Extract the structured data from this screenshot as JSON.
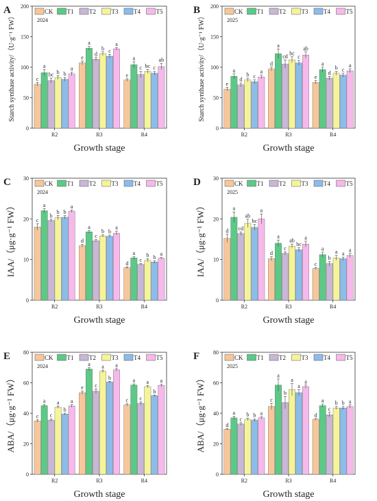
{
  "legend_labels": [
    "CK",
    "T1",
    "T2",
    "T3",
    "T4",
    "T5"
  ],
  "series_colors": [
    "#F7C79B",
    "#5DC987",
    "#C9B7D6",
    "#F6F49A",
    "#8DBBEA",
    "#F7B8EC"
  ],
  "chart_data": [
    {
      "type": "bar",
      "panel_label": "A",
      "year": "2024",
      "ylabel": "Starch synthase activity/（U·g⁻¹ FW）",
      "xlabel": "Growth stage",
      "categories": [
        "R2",
        "R3",
        "R4"
      ],
      "ylim": [
        0,
        200
      ],
      "yticks": [
        0,
        50,
        100,
        150,
        200
      ],
      "series": [
        {
          "name": "CK",
          "values": [
            72,
            107,
            79
          ],
          "errors": [
            3,
            3,
            2
          ],
          "letters": [
            "c",
            "e",
            "e"
          ]
        },
        {
          "name": "T1",
          "values": [
            91,
            131,
            104
          ],
          "errors": [
            5,
            3,
            5
          ],
          "letters": [
            "a",
            "a",
            "a"
          ]
        },
        {
          "name": "T2",
          "values": [
            78,
            113,
            88
          ],
          "errors": [
            4,
            3,
            5
          ],
          "letters": [
            "bc",
            "d",
            "c"
          ]
        },
        {
          "name": "T3",
          "values": [
            83,
            122,
            93
          ],
          "errors": [
            3,
            3,
            3
          ],
          "letters": [
            "b",
            "b",
            "bc"
          ]
        },
        {
          "name": "T4",
          "values": [
            80,
            118,
            90
          ],
          "errors": [
            3,
            3,
            3
          ],
          "letters": [
            "b",
            "c",
            "c"
          ]
        },
        {
          "name": "T5",
          "values": [
            89,
            130,
            101
          ],
          "errors": [
            3,
            2,
            5
          ],
          "letters": [
            "a",
            "a",
            "ab"
          ]
        }
      ]
    },
    {
      "type": "bar",
      "panel_label": "B",
      "year": "2025",
      "ylabel": "Starch synthase activity/（U·g⁻¹ FW）",
      "xlabel": "Growth stage",
      "categories": [
        "R2",
        "R3",
        "R4"
      ],
      "ylim": [
        0,
        200
      ],
      "yticks": [
        0,
        50,
        100,
        150,
        200
      ],
      "series": [
        {
          "name": "CK",
          "values": [
            64,
            97,
            75
          ],
          "errors": [
            3,
            3,
            3
          ],
          "letters": [
            "e",
            "d",
            "e"
          ]
        },
        {
          "name": "T1",
          "values": [
            85,
            122,
            96
          ],
          "errors": [
            4,
            8,
            4
          ],
          "letters": [
            "a",
            "a",
            "a"
          ]
        },
        {
          "name": "T2",
          "values": [
            71,
            105,
            82
          ],
          "errors": [
            3,
            7,
            3
          ],
          "letters": [
            "d",
            "cd",
            "d"
          ]
        },
        {
          "name": "T3",
          "values": [
            79,
            112,
            90
          ],
          "errors": [
            3,
            5,
            3
          ],
          "letters": [
            "b",
            "bc",
            "b"
          ]
        },
        {
          "name": "T4",
          "values": [
            76,
            107,
            87
          ],
          "errors": [
            3,
            4,
            3
          ],
          "letters": [
            "c",
            "c",
            "c"
          ]
        },
        {
          "name": "T5",
          "values": [
            84,
            120,
            94
          ],
          "errors": [
            3,
            5,
            3
          ],
          "letters": [
            "a",
            "ab",
            "a"
          ]
        }
      ]
    },
    {
      "type": "bar",
      "panel_label": "C",
      "year": "2024",
      "ylabel": "IAA/（μg·g⁻¹ FW）",
      "xlabel": "Growth stage",
      "categories": [
        "R2",
        "R3",
        "R4"
      ],
      "ylim": [
        0,
        30
      ],
      "yticks": [
        0,
        10,
        20,
        30
      ],
      "series": [
        {
          "name": "CK",
          "values": [
            18.0,
            13.4,
            8.0
          ],
          "errors": [
            0.8,
            0.3,
            0.2
          ],
          "letters": [
            "c",
            "d",
            "d"
          ]
        },
        {
          "name": "T1",
          "values": [
            22.0,
            16.8,
            10.4
          ],
          "errors": [
            0.5,
            0.3,
            0.3
          ],
          "letters": [
            "a",
            "a",
            "a"
          ]
        },
        {
          "name": "T2",
          "values": [
            19.6,
            14.6,
            8.8
          ],
          "errors": [
            0.3,
            0.3,
            0.2
          ],
          "letters": [
            "b",
            "c",
            "c"
          ]
        },
        {
          "name": "T3",
          "values": [
            20.3,
            15.8,
            9.8
          ],
          "errors": [
            0.5,
            0.3,
            0.4
          ],
          "letters": [
            "b",
            "b",
            "b"
          ]
        },
        {
          "name": "T4",
          "values": [
            20.4,
            15.7,
            9.4
          ],
          "errors": [
            0.4,
            0.3,
            0.3
          ],
          "letters": [
            "b",
            "b",
            "b"
          ]
        },
        {
          "name": "T5",
          "values": [
            21.9,
            16.5,
            10.3
          ],
          "errors": [
            0.3,
            0.5,
            0.2
          ],
          "letters": [
            "a",
            "a",
            "a"
          ]
        }
      ]
    },
    {
      "type": "bar",
      "panel_label": "D",
      "year": "2025",
      "ylabel": "IAA/（μg·g⁻¹ FW）",
      "xlabel": "Growth stage",
      "categories": [
        "R2",
        "R3",
        "R4"
      ],
      "ylim": [
        0,
        30
      ],
      "yticks": [
        0,
        10,
        20,
        30
      ],
      "series": [
        {
          "name": "CK",
          "values": [
            15.2,
            10.2,
            7.8
          ],
          "errors": [
            1.0,
            0.5,
            0.2
          ],
          "letters": [
            "d",
            "d",
            "c"
          ]
        },
        {
          "name": "T1",
          "values": [
            20.4,
            14.0,
            11.2
          ],
          "errors": [
            1.3,
            0.8,
            0.6
          ],
          "letters": [
            "a",
            "a",
            "a"
          ]
        },
        {
          "name": "T2",
          "values": [
            16.4,
            11.5,
            9.0
          ],
          "errors": [
            0.4,
            0.4,
            0.5
          ],
          "letters": [
            "cd",
            "c",
            "b"
          ]
        },
        {
          "name": "T3",
          "values": [
            18.9,
            13.3,
            10.4
          ],
          "errors": [
            1.0,
            0.5,
            0.6
          ],
          "letters": [
            "ab",
            "ab",
            "a"
          ]
        },
        {
          "name": "T4",
          "values": [
            17.9,
            12.4,
            10.2
          ],
          "errors": [
            0.7,
            0.5,
            0.4
          ],
          "letters": [
            "bc",
            "bc",
            "a"
          ]
        },
        {
          "name": "T5",
          "values": [
            20.0,
            13.8,
            11.0
          ],
          "errors": [
            1.2,
            0.7,
            0.5
          ],
          "letters": [
            "a",
            "a",
            "a"
          ]
        }
      ]
    },
    {
      "type": "bar",
      "panel_label": "E",
      "year": "2024",
      "ylabel": "ABA/（μg·g⁻¹ FW）",
      "xlabel": "Growth stage",
      "categories": [
        "R2",
        "R3",
        "R4"
      ],
      "ylim": [
        0,
        80
      ],
      "yticks": [
        0,
        20,
        40,
        60,
        80
      ],
      "series": [
        {
          "name": "CK",
          "values": [
            35,
            53.5,
            45.5
          ],
          "errors": [
            0.8,
            1.0,
            0.8
          ],
          "letters": [
            "c",
            "e",
            "c"
          ]
        },
        {
          "name": "T1",
          "values": [
            45,
            69,
            58.5
          ],
          "errors": [
            0.8,
            1.0,
            0.8
          ],
          "letters": [
            "a",
            "a",
            "a"
          ]
        },
        {
          "name": "T2",
          "values": [
            35.5,
            54.5,
            46.5
          ],
          "errors": [
            0.8,
            1.5,
            1.0
          ],
          "letters": [
            "c",
            "c",
            "c"
          ]
        },
        {
          "name": "T3",
          "values": [
            44,
            67.5,
            57.5
          ],
          "errors": [
            0.8,
            0.8,
            0.8
          ],
          "letters": [
            "a",
            "a",
            "a"
          ]
        },
        {
          "name": "T4",
          "values": [
            39.5,
            60.5,
            51.5
          ],
          "errors": [
            0.5,
            0.5,
            0.5
          ],
          "letters": [
            "b",
            "b",
            "b"
          ]
        },
        {
          "name": "T5",
          "values": [
            44.8,
            68.5,
            58.3
          ],
          "errors": [
            0.8,
            0.8,
            0.8
          ],
          "letters": [
            "a",
            "a",
            "a"
          ]
        }
      ]
    },
    {
      "type": "bar",
      "panel_label": "F",
      "year": "2025",
      "ylabel": "ABA/（μg·g⁻¹ FW）",
      "xlabel": "Growth stage",
      "categories": [
        "R2",
        "R3",
        "R4"
      ],
      "ylim": [
        0,
        80
      ],
      "yticks": [
        0,
        20,
        40,
        60,
        80
      ],
      "series": [
        {
          "name": "CK",
          "values": [
            29.5,
            44.5,
            36
          ],
          "errors": [
            0.5,
            2.0,
            0.5
          ],
          "letters": [
            "d",
            "c",
            "d"
          ]
        },
        {
          "name": "T1",
          "values": [
            37,
            58.5,
            45
          ],
          "errors": [
            1.0,
            4.0,
            1.0
          ],
          "letters": [
            "a",
            "a",
            "a"
          ]
        },
        {
          "name": "T2",
          "values": [
            33,
            47,
            39
          ],
          "errors": [
            0.8,
            4.0,
            1.5
          ],
          "letters": [
            "c",
            "b",
            "c"
          ]
        },
        {
          "name": "T3",
          "values": [
            36,
            55.5,
            43.5
          ],
          "errors": [
            0.8,
            4.0,
            1.0
          ],
          "letters": [
            "b",
            "a",
            "b"
          ]
        },
        {
          "name": "T4",
          "values": [
            35.5,
            53.5,
            43.5
          ],
          "errors": [
            0.8,
            2.0,
            1.0
          ],
          "letters": [
            "b",
            "a",
            "b"
          ]
        },
        {
          "name": "T5",
          "values": [
            37,
            57.5,
            44.5
          ],
          "errors": [
            0.8,
            1.0,
            1.0
          ],
          "letters": [
            "a",
            "a",
            "a"
          ]
        }
      ]
    }
  ]
}
